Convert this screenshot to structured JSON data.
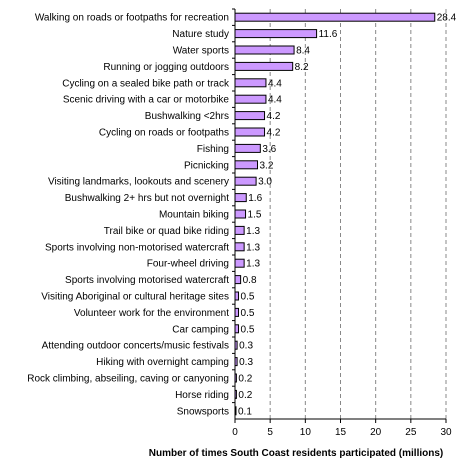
{
  "chart_data": {
    "type": "bar",
    "orientation": "horizontal",
    "categories": [
      "Walking on roads or footpaths for recreation",
      "Nature study",
      "Water sports",
      "Running or jogging outdoors",
      "Cycling on a sealed bike path or track",
      "Scenic driving with a car or motorbike",
      "Bushwalking <2hrs",
      "Cycling on roads or footpaths",
      "Fishing",
      "Picnicking",
      "Visiting landmarks, lookouts and scenery",
      "Bushwalking 2+ hrs but not overnight",
      "Mountain biking",
      "Trail bike or quad bike riding",
      "Sports involving non-motorised watercraft",
      "Four-wheel driving",
      "Sports involving motorised watercraft",
      "Visiting Aboriginal or cultural heritage sites",
      "Volunteer work for the environment",
      "Car camping",
      "Attending outdoor concerts/music festivals",
      "Hiking with overnight camping",
      "Rock climbing, abseiling, caving or canyoning",
      "Horse riding",
      "Snowsports"
    ],
    "values": [
      28.4,
      11.6,
      8.4,
      8.2,
      4.4,
      4.4,
      4.2,
      4.2,
      3.6,
      3.2,
      3.0,
      1.6,
      1.5,
      1.3,
      1.3,
      1.3,
      0.8,
      0.5,
      0.5,
      0.5,
      0.3,
      0.3,
      0.2,
      0.2,
      0.1
    ],
    "value_labels": [
      "28.4",
      "11.6",
      "8.4",
      "8.2",
      "4.4",
      "4.4",
      "4.2",
      "4.2",
      "3.6",
      "3.2",
      "3.0",
      "1.6",
      "1.5",
      "1.3",
      "1.3",
      "1.3",
      "0.8",
      "0.5",
      "0.5",
      "0.5",
      "0.3",
      "0.3",
      "0.2",
      "0.2",
      "0.1"
    ],
    "xlabel": "Number of times South Coast residents participated (millions)",
    "ylabel": "",
    "xlim": [
      0,
      30
    ],
    "xticks": [
      0,
      5,
      10,
      15,
      20,
      25,
      30
    ],
    "grid": "vertical dashed",
    "bar_color": "#cc99ff",
    "bar_edge_color": "#000000",
    "grid_color": "#888888"
  }
}
